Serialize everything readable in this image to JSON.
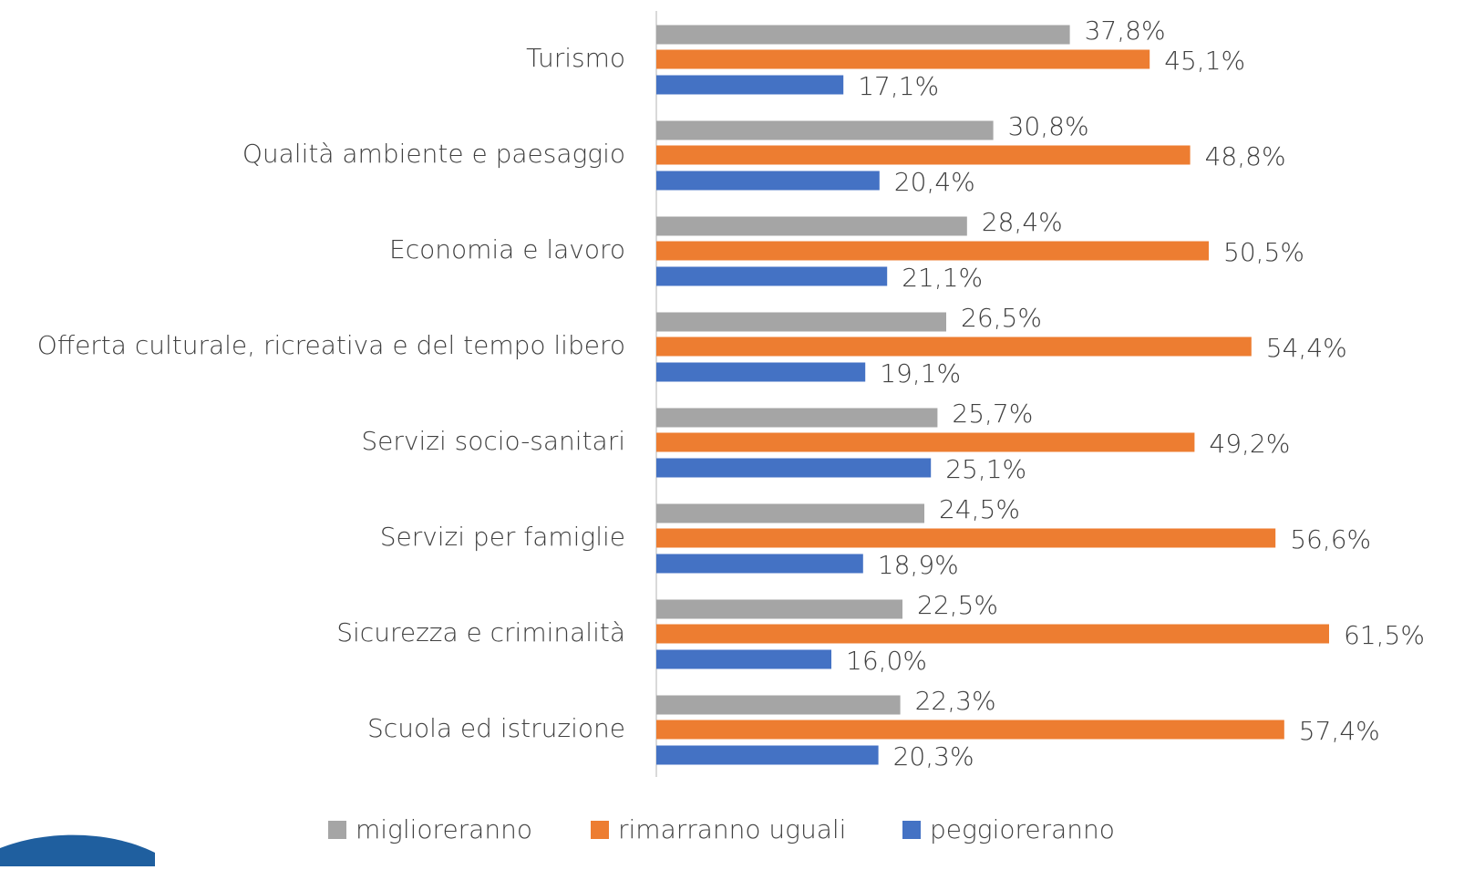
{
  "chart_data": {
    "type": "bar",
    "orientation": "horizontal",
    "categories": [
      "Turismo",
      "Qualità ambiente e paesaggio",
      "Economia e lavoro",
      "Offerta culturale, ricreativa e del tempo libero",
      "Servizi socio-sanitari",
      "Servizi per famiglie",
      "Sicurezza e criminalità",
      "Scuola ed istruzione"
    ],
    "series": [
      {
        "name": "miglioreranno",
        "color": "#a5a5a5",
        "values": [
          37.8,
          30.8,
          28.4,
          26.5,
          25.7,
          24.5,
          22.5,
          22.3
        ],
        "value_labels": [
          "37,8%",
          "30,8%",
          "28,4%",
          "26,5%",
          "25,7%",
          "24,5%",
          "22,5%",
          "22,3%"
        ]
      },
      {
        "name": "rimarranno uguali",
        "color": "#ed7d31",
        "values": [
          45.1,
          48.8,
          50.5,
          54.4,
          49.2,
          56.6,
          61.5,
          57.4
        ],
        "value_labels": [
          "45,1%",
          "48,8%",
          "50,5%",
          "54,4%",
          "49,2%",
          "56,6%",
          "61,5%",
          "57,4%"
        ]
      },
      {
        "name": "peggioreranno",
        "color": "#4472c4",
        "values": [
          17.1,
          20.4,
          21.1,
          19.1,
          25.1,
          18.9,
          16.0,
          20.3
        ],
        "value_labels": [
          "17,1%",
          "20,4%",
          "21,1%",
          "19,1%",
          "25,1%",
          "18,9%",
          "16,0%",
          "20,3%"
        ]
      }
    ],
    "xlim": [
      0,
      70
    ],
    "legend": "bottom"
  }
}
